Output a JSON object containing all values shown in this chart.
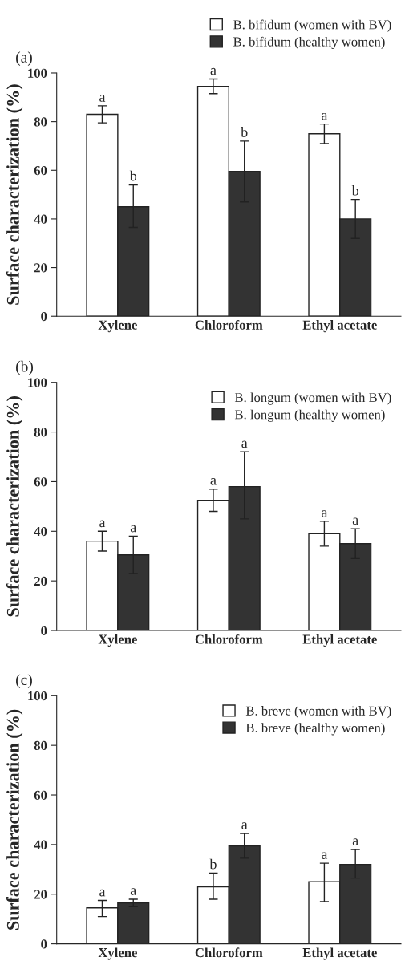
{
  "chart_data": [
    {
      "type": "bar",
      "title": "(a)",
      "ylabel": "Surface characterization (%)",
      "categories": [
        "Xylene",
        "Chloroform",
        "Ethyl acetate"
      ],
      "ylim": [
        0,
        100
      ],
      "yticks": [
        0,
        20,
        40,
        60,
        80,
        100
      ],
      "legend": "top",
      "grid": false,
      "series": [
        {
          "name": "B. bifidum (women with BV)",
          "color": "#ffffff",
          "values": [
            83,
            94.5,
            75
          ],
          "errors": [
            [
              79.5,
              86.5
            ],
            [
              91.5,
              97.5
            ],
            [
              71,
              79
            ]
          ]
        },
        {
          "name": "B. bifidum (healthy women)",
          "color": "#333333",
          "values": [
            45,
            59.5,
            40
          ],
          "errors": [
            [
              36.5,
              54
            ],
            [
              47,
              72
            ],
            [
              32,
              48
            ]
          ]
        }
      ],
      "annotations": [
        "a",
        "b",
        "a",
        "b",
        "a",
        "b"
      ]
    },
    {
      "type": "bar",
      "title": "(b)",
      "ylabel": "Surface characterization (%)",
      "categories": [
        "Xylene",
        "Chloroform",
        "Ethyl acetate"
      ],
      "ylim": [
        0,
        100
      ],
      "yticks": [
        0,
        20,
        40,
        60,
        80,
        100
      ],
      "legend": "top right",
      "grid": false,
      "series": [
        {
          "name": "B. longum (women with BV)",
          "color": "#ffffff",
          "values": [
            36,
            52.5,
            39
          ],
          "errors": [
            [
              32,
              40
            ],
            [
              48,
              57
            ],
            [
              34,
              44
            ]
          ]
        },
        {
          "name": "B. longum (healthy women)",
          "color": "#333333",
          "values": [
            30.5,
            58,
            35
          ],
          "errors": [
            [
              23,
              38
            ],
            [
              45,
              72
            ],
            [
              29,
              41
            ]
          ]
        }
      ],
      "annotations": [
        "a",
        "a",
        "a",
        "a",
        "a",
        "a"
      ]
    },
    {
      "type": "bar",
      "title": "(c)",
      "ylabel": "Surface characterization (%)",
      "categories": [
        "Xylene",
        "Chloroform",
        "Ethyl acetate"
      ],
      "ylim": [
        0,
        100
      ],
      "yticks": [
        0,
        20,
        40,
        60,
        80,
        100
      ],
      "legend": "top right",
      "grid": false,
      "series": [
        {
          "name": "B. breve (women with BV)",
          "color": "#ffffff",
          "values": [
            14.5,
            23,
            25
          ],
          "errors": [
            [
              11,
              17.5
            ],
            [
              18,
              28.5
            ],
            [
              17,
              32.5
            ]
          ]
        },
        {
          "name": "B. breve (healthy women)",
          "color": "#333333",
          "values": [
            16.5,
            39.5,
            32
          ],
          "errors": [
            [
              15,
              18
            ],
            [
              34.5,
              44.5
            ],
            [
              26.5,
              38
            ]
          ]
        }
      ],
      "annotations": [
        "a",
        "a",
        "b",
        "a",
        "a",
        "a"
      ]
    }
  ]
}
